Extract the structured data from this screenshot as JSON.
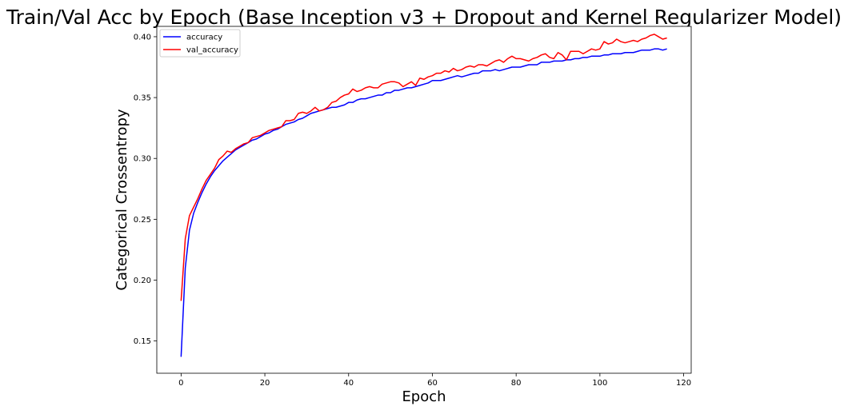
{
  "chart_data": {
    "type": "line",
    "title": "Train/Val Acc by Epoch (Base Inception v3 + Dropout and Kernel Regularizer Model)",
    "xlabel": "Epoch",
    "ylabel": "Categorical Crossentropy",
    "xlim": [
      -5.8,
      121.8
    ],
    "ylim": [
      0.1235,
      0.4085
    ],
    "xticks": [
      "0",
      "20",
      "40",
      "60",
      "80",
      "100",
      "120"
    ],
    "xtick_values": [
      0,
      20,
      40,
      60,
      80,
      100,
      120
    ],
    "yticks": [
      "0.15",
      "0.20",
      "0.25",
      "0.30",
      "0.35",
      "0.40"
    ],
    "ytick_values": [
      0.15,
      0.2,
      0.25,
      0.3,
      0.35,
      0.4
    ],
    "grid": false,
    "legend_position": "top-left",
    "series": [
      {
        "name": "accuracy",
        "color": "#0000ff",
        "x": [
          0,
          1,
          2,
          3,
          4,
          5,
          6,
          7,
          8,
          9,
          10,
          11,
          12,
          13,
          14,
          15,
          16,
          17,
          18,
          19,
          20,
          21,
          22,
          23,
          24,
          25,
          26,
          27,
          28,
          29,
          30,
          31,
          32,
          33,
          34,
          35,
          36,
          37,
          38,
          39,
          40,
          41,
          42,
          43,
          44,
          45,
          46,
          47,
          48,
          49,
          50,
          51,
          52,
          53,
          54,
          55,
          56,
          57,
          58,
          59,
          60,
          61,
          62,
          63,
          64,
          65,
          66,
          67,
          68,
          69,
          70,
          71,
          72,
          73,
          74,
          75,
          76,
          77,
          78,
          79,
          80,
          81,
          82,
          83,
          84,
          85,
          86,
          87,
          88,
          89,
          90,
          91,
          92,
          93,
          94,
          95,
          96,
          97,
          98,
          99,
          100,
          101,
          102,
          103,
          104,
          105,
          106,
          107,
          108,
          109,
          110,
          111,
          112,
          113,
          114,
          115,
          116
        ],
        "y": [
          0.137,
          0.21,
          0.241,
          0.255,
          0.264,
          0.272,
          0.279,
          0.285,
          0.29,
          0.294,
          0.298,
          0.301,
          0.304,
          0.307,
          0.309,
          0.311,
          0.313,
          0.315,
          0.316,
          0.318,
          0.32,
          0.321,
          0.323,
          0.324,
          0.326,
          0.328,
          0.329,
          0.33,
          0.332,
          0.333,
          0.335,
          0.337,
          0.338,
          0.339,
          0.34,
          0.341,
          0.342,
          0.342,
          0.343,
          0.344,
          0.346,
          0.346,
          0.348,
          0.349,
          0.349,
          0.35,
          0.351,
          0.352,
          0.352,
          0.354,
          0.354,
          0.356,
          0.356,
          0.357,
          0.358,
          0.358,
          0.359,
          0.36,
          0.361,
          0.362,
          0.364,
          0.364,
          0.364,
          0.365,
          0.366,
          0.367,
          0.368,
          0.367,
          0.368,
          0.369,
          0.37,
          0.37,
          0.372,
          0.372,
          0.372,
          0.373,
          0.372,
          0.373,
          0.374,
          0.375,
          0.375,
          0.375,
          0.376,
          0.377,
          0.377,
          0.377,
          0.379,
          0.379,
          0.379,
          0.38,
          0.38,
          0.38,
          0.381,
          0.381,
          0.382,
          0.382,
          0.383,
          0.383,
          0.384,
          0.384,
          0.384,
          0.385,
          0.385,
          0.386,
          0.386,
          0.386,
          0.387,
          0.387,
          0.387,
          0.388,
          0.389,
          0.389,
          0.389,
          0.39,
          0.39,
          0.389,
          0.39
        ]
      },
      {
        "name": "val_accuracy",
        "color": "#ff0000",
        "x": [
          0,
          1,
          2,
          3,
          4,
          5,
          6,
          7,
          8,
          9,
          10,
          11,
          12,
          13,
          14,
          15,
          16,
          17,
          18,
          19,
          20,
          21,
          22,
          23,
          24,
          25,
          26,
          27,
          28,
          29,
          30,
          31,
          32,
          33,
          34,
          35,
          36,
          37,
          38,
          39,
          40,
          41,
          42,
          43,
          44,
          45,
          46,
          47,
          48,
          49,
          50,
          51,
          52,
          53,
          54,
          55,
          56,
          57,
          58,
          59,
          60,
          61,
          62,
          63,
          64,
          65,
          66,
          67,
          68,
          69,
          70,
          71,
          72,
          73,
          74,
          75,
          76,
          77,
          78,
          79,
          80,
          81,
          82,
          83,
          84,
          85,
          86,
          87,
          88,
          89,
          90,
          91,
          92,
          93,
          94,
          95,
          96,
          97,
          98,
          99,
          100,
          101,
          102,
          103,
          104,
          105,
          106,
          107,
          108,
          109,
          110,
          111,
          112,
          113,
          114,
          115,
          116
        ],
        "y": [
          0.183,
          0.234,
          0.253,
          0.26,
          0.267,
          0.275,
          0.282,
          0.287,
          0.292,
          0.299,
          0.302,
          0.306,
          0.305,
          0.308,
          0.31,
          0.312,
          0.313,
          0.317,
          0.318,
          0.319,
          0.321,
          0.323,
          0.324,
          0.325,
          0.326,
          0.331,
          0.331,
          0.332,
          0.337,
          0.338,
          0.337,
          0.339,
          0.342,
          0.339,
          0.34,
          0.342,
          0.346,
          0.347,
          0.35,
          0.352,
          0.353,
          0.357,
          0.355,
          0.356,
          0.358,
          0.359,
          0.358,
          0.358,
          0.361,
          0.362,
          0.363,
          0.363,
          0.362,
          0.359,
          0.361,
          0.363,
          0.36,
          0.366,
          0.365,
          0.367,
          0.368,
          0.37,
          0.37,
          0.372,
          0.371,
          0.374,
          0.372,
          0.373,
          0.375,
          0.376,
          0.375,
          0.377,
          0.377,
          0.376,
          0.378,
          0.38,
          0.381,
          0.379,
          0.382,
          0.384,
          0.382,
          0.382,
          0.381,
          0.38,
          0.382,
          0.383,
          0.385,
          0.386,
          0.383,
          0.382,
          0.387,
          0.385,
          0.381,
          0.388,
          0.388,
          0.388,
          0.386,
          0.388,
          0.39,
          0.389,
          0.39,
          0.396,
          0.394,
          0.395,
          0.398,
          0.396,
          0.395,
          0.396,
          0.397,
          0.396,
          0.398,
          0.399,
          0.401,
          0.402,
          0.4,
          0.398,
          0.399
        ]
      }
    ]
  }
}
